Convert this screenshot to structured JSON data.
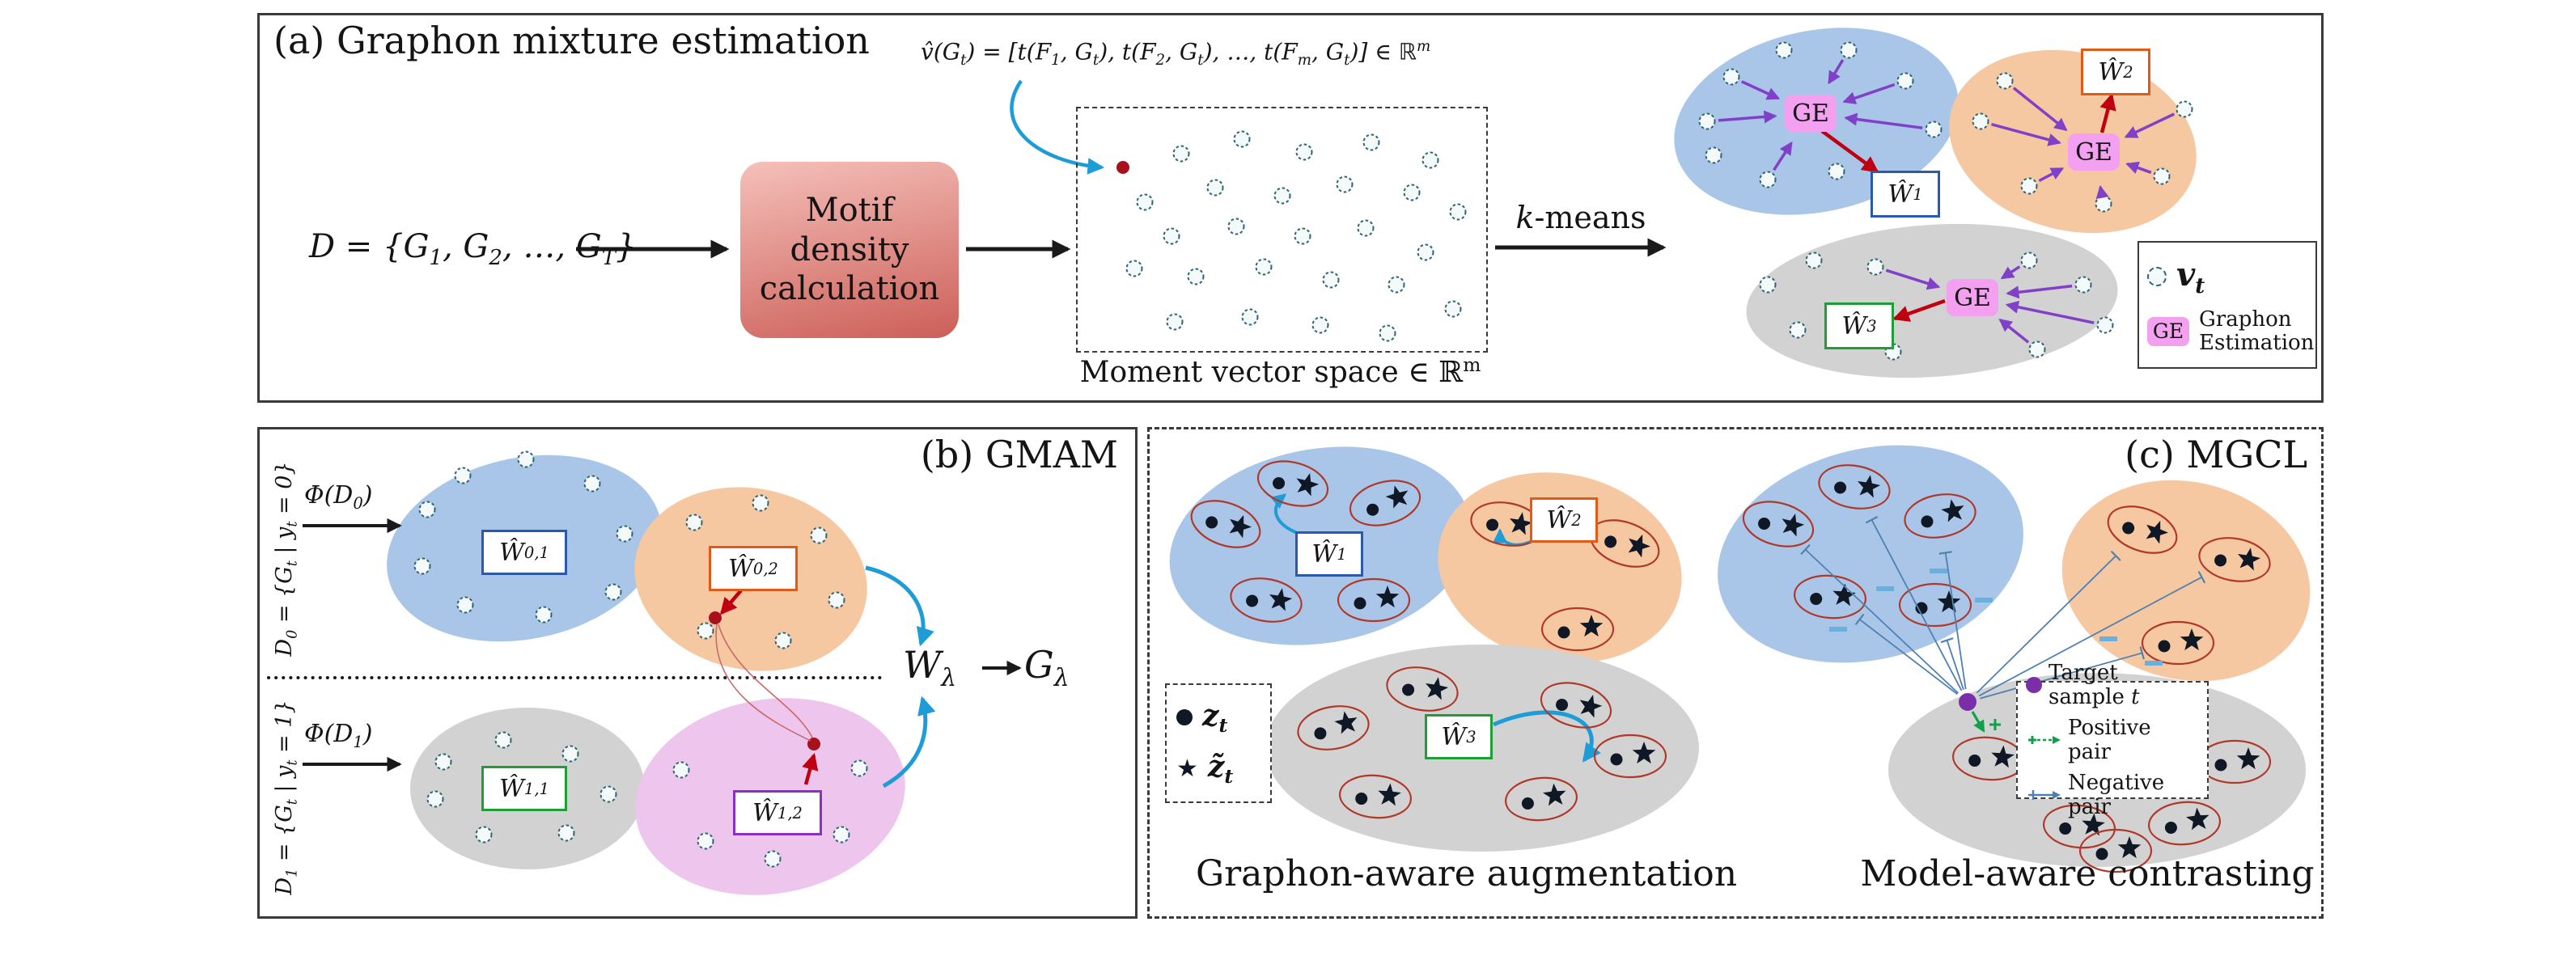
{
  "colors": {
    "blue_ellipse": "#a9c6e8",
    "orange_ellipse": "#f6c8a2",
    "gray_ellipse": "#d2d2d2",
    "pink_ellipse": "#eec5ec",
    "ge_box": "#f2a0ef",
    "node_stroke": "#2f6575",
    "node_fill": "#f4f9fa",
    "w1_border": "#2b5aa8",
    "w2_border": "#e05a18",
    "w3_border": "#1f9e38",
    "w12_border": "#8a2fc8",
    "black_arrow": "#1a1a1a",
    "red_arrow": "#c00010",
    "red_dot": "#a8101c",
    "red_link": "#c96a6a",
    "purple_arrow": "#8040c8",
    "blue_arrow": "#1e9cd8",
    "green_positive": "#0fa04a",
    "negative_line": "#5080b0",
    "minus_mark": "#6ab0dc",
    "pair_outline": "#b03828",
    "dot_fill": "#101826",
    "target_purple": "#7a2fa8",
    "motif_top": "#f5c0ba",
    "motif_bottom": "#cc5f58"
  },
  "panel_a": {
    "title": "(a) Graphon mixture estimation",
    "moment_formula": "v̂(G_{t}) = [t(F_{1}, G_{t}), t(F_{2}, G_{t}), …, t(F_{m}, G_{t})] ∈ ℝ^{m}",
    "dataset_formula": "D = {G_{1}, G_{2}, …, G_{T}}",
    "motif_box_lines": [
      "Motif",
      "density",
      "calculation"
    ],
    "moment_space_caption": "Moment vector space ∈ ℝ^{m}",
    "kmeans_label": "*k*-means",
    "ge_label": "GE",
    "w1_label": "Ŵ_{1}",
    "w2_label": "Ŵ_{2}",
    "w3_label": "Ŵ_{3}",
    "legend": {
      "node_label": "v_{t}",
      "ge_chip": "GE",
      "ge_desc_lines": [
        "Graphon",
        "Estimation"
      ]
    }
  },
  "panel_b": {
    "title": "(b) GMAM",
    "dataset0_label": "D_{0} = {G_{t} | y_{t} = 0}",
    "dataset1_label": "D_{1} = {G_{t} | y_{t} = 1}",
    "phi0_label": "Φ(D_{0})",
    "phi1_label": "Φ(D_{1})",
    "w01_label": "Ŵ_{0,1}",
    "w02_label": "Ŵ_{0,2}",
    "w11_label": "Ŵ_{1,1}",
    "w12_label": "Ŵ_{1,2}",
    "w_lambda_label": "W_{λ}",
    "g_lambda_label": "G_{λ}"
  },
  "panel_c": {
    "title": "(c) MGCL",
    "w1_label": "Ŵ_{1}",
    "w2_label": "Ŵ_{2}",
    "w3_label": "Ŵ_{3}",
    "legend_left": {
      "z_label": "z_{t}",
      "z_tilde_label": "z̃_{t}"
    },
    "legend_right": {
      "target_label": "Target sample *t*",
      "positive_label": "Positive pair",
      "negative_label": "Negative pair"
    },
    "caption_left": "Graphon-aware augmentation",
    "caption_right": "Model-aware contrasting"
  }
}
